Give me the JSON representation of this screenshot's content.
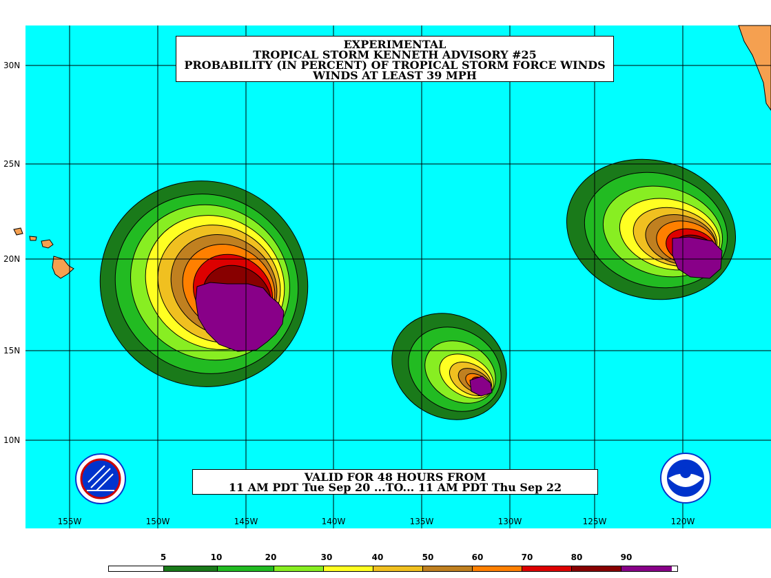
{
  "title": {
    "line1": "EXPERIMENTAL",
    "line2": "TROPICAL STORM KENNETH ADVISORY #25",
    "line3": "PROBABILITY (IN PERCENT) OF TROPICAL STORM FORCE WINDS",
    "line4": "WINDS AT LEAST 39 MPH"
  },
  "valid": {
    "line1": "VALID FOR 48 HOURS FROM",
    "line2": "11 AM PDT Tue Sep 20 ...TO... 11 AM PDT Thu Sep 22"
  },
  "axes": {
    "lat_labels": [
      "30N",
      "25N",
      "20N",
      "15N",
      "10N"
    ],
    "lon_labels": [
      "155W",
      "150W",
      "145W",
      "140W",
      "135W",
      "130W",
      "125W",
      "120W"
    ]
  },
  "legend": {
    "labels": [
      "5",
      "10",
      "20",
      "30",
      "40",
      "50",
      "60",
      "70",
      "80",
      "90"
    ],
    "colors": [
      "#ffffff",
      "#1a7a1a",
      "#22bb22",
      "#88ee22",
      "#ffff22",
      "#f0c020",
      "#c08020",
      "#ff8000",
      "#dd0000",
      "#880000",
      "#880088"
    ]
  },
  "colors": {
    "ocean": "#00ffff",
    "land": "#f5a050"
  },
  "icons": {
    "left_logo": "nws-logo-icon",
    "right_logo": "noaa-logo-icon"
  }
}
